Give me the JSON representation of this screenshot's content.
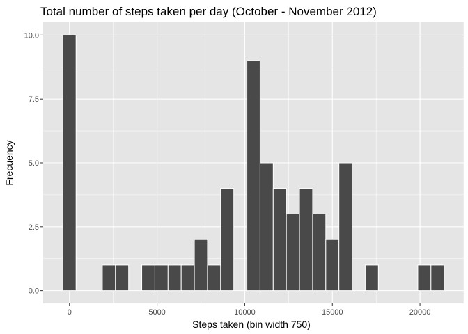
{
  "chart_data": {
    "type": "bar",
    "title": "Total number of steps taken per day (October - November 2012)",
    "xlabel": "Steps taken (bin width 750)",
    "ylabel": "Frecuency",
    "bin_width": 750,
    "xlim": [
      -1500,
      22500
    ],
    "ylim": [
      -0.5,
      10.5
    ],
    "x_ticks": [
      0,
      5000,
      10000,
      15000,
      20000
    ],
    "x_tick_labels": [
      "0",
      "5000",
      "10000",
      "15000",
      "20000"
    ],
    "y_ticks": [
      0,
      2.5,
      5,
      7.5,
      10
    ],
    "y_tick_labels": [
      "0.0",
      "2.5",
      "5.0",
      "7.5",
      "10.0"
    ],
    "grid": true,
    "legend": "none",
    "bins": [
      {
        "x": 0,
        "count": 10
      },
      {
        "x": 2250,
        "count": 1
      },
      {
        "x": 3000,
        "count": 1
      },
      {
        "x": 4500,
        "count": 1
      },
      {
        "x": 5250,
        "count": 1
      },
      {
        "x": 6000,
        "count": 1
      },
      {
        "x": 6750,
        "count": 1
      },
      {
        "x": 7500,
        "count": 2
      },
      {
        "x": 8250,
        "count": 1
      },
      {
        "x": 9000,
        "count": 4
      },
      {
        "x": 10500,
        "count": 9
      },
      {
        "x": 11250,
        "count": 5
      },
      {
        "x": 12000,
        "count": 4
      },
      {
        "x": 12750,
        "count": 3
      },
      {
        "x": 13500,
        "count": 4
      },
      {
        "x": 14250,
        "count": 3
      },
      {
        "x": 15000,
        "count": 2
      },
      {
        "x": 15750,
        "count": 5
      },
      {
        "x": 17250,
        "count": 1
      },
      {
        "x": 20250,
        "count": 1
      },
      {
        "x": 21000,
        "count": 1
      }
    ],
    "colors": {
      "panel": "#e5e5e5",
      "grid_major": "#ffffff",
      "bar_fill": "#494949",
      "bar_outline": "#ffffff",
      "tick": "#333333"
    }
  }
}
